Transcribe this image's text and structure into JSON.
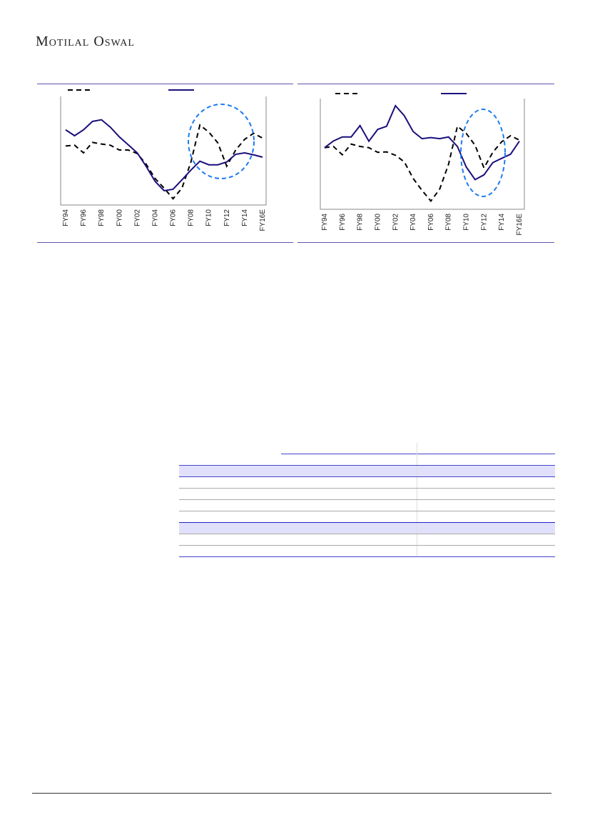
{
  "header": {
    "logo_text": "Motilal Oswal"
  },
  "colors": {
    "solid_series": "#1a0f7a",
    "dashed_series": "#000000",
    "highlight_ellipse": "#1e7bf0",
    "rule": "#5b55a8",
    "table_band": "#e0e0fa"
  },
  "chart_data": [
    {
      "type": "line",
      "title": "",
      "xlabel": "",
      "ylabel": "",
      "y_axis": "not printed; values read as relative index 0-100 of plot height",
      "grid": false,
      "legend": "top (markers only, no text)",
      "x": [
        "FY94",
        "FY95",
        "FY96",
        "FY97",
        "FY98",
        "FY99",
        "FY00",
        "FY01",
        "FY02",
        "FY03",
        "FY04",
        "FY05",
        "FY06",
        "FY07",
        "FY08",
        "FY09",
        "FY10",
        "FY11",
        "FY12",
        "FY13",
        "FY14",
        "FY15",
        "FY16E"
      ],
      "tick_labels": [
        "FY94",
        "FY96",
        "FY98",
        "FY00",
        "FY02",
        "FY04",
        "FY06",
        "FY08",
        "FY10",
        "FY12",
        "FY14",
        "FY16E"
      ],
      "series": [
        {
          "style": "dashed",
          "values": [
            54,
            54.7,
            47.7,
            57.3,
            55.8,
            54.7,
            50.3,
            50.3,
            47.1,
            37.3,
            24.2,
            15.5,
            5.7,
            15.5,
            39.4,
            73.2,
            66.7,
            56.9,
            35.5,
            50.3,
            60.1,
            65.6,
            61.2
          ]
        },
        {
          "style": "solid",
          "values": [
            68.8,
            63.4,
            68.8,
            76.5,
            78,
            71.2,
            62.3,
            55.1,
            47.7,
            35.3,
            21.6,
            13.1,
            14.4,
            23.1,
            32,
            40.1,
            36.8,
            36.8,
            39.4,
            46.4,
            47.7,
            45.9,
            43.8
          ]
        }
      ],
      "annotation": "dashed ellipse highlighting FY09-FY15"
    },
    {
      "type": "line",
      "title": "",
      "xlabel": "",
      "ylabel": "",
      "y_axis": "not printed; values read as relative index 0-100 of plot height",
      "grid": false,
      "legend": "top (markers only, no text)",
      "x": [
        "FY94",
        "FY95",
        "FY96",
        "FY97",
        "FY98",
        "FY99",
        "FY00",
        "FY01",
        "FY02",
        "FY03",
        "FY04",
        "FY05",
        "FY06",
        "FY07",
        "FY08",
        "FY09",
        "FY10",
        "FY11",
        "FY12",
        "FY13",
        "FY14",
        "FY15",
        "FY16E"
      ],
      "tick_labels": [
        "FY94",
        "FY96",
        "FY98",
        "FY00",
        "FY02",
        "FY04",
        "FY06",
        "FY08",
        "FY10",
        "FY12",
        "FY14",
        "FY16E"
      ],
      "series": [
        {
          "style": "dashed",
          "values": [
            55.3,
            56.4,
            48.9,
            58.5,
            56.4,
            55.3,
            51.1,
            51.5,
            48.5,
            42.6,
            27.7,
            17,
            7.4,
            18.1,
            40.4,
            74.5,
            68.1,
            57.4,
            37.2,
            51.1,
            60.6,
            66,
            62.1
          ]
        },
        {
          "style": "solid",
          "values": [
            55.3,
            61.3,
            64.9,
            64.9,
            75.1,
            61.1,
            71.7,
            74.5,
            93,
            84,
            69.8,
            63.4,
            64.3,
            63.4,
            64.9,
            56.4,
            37.9,
            26.6,
            30.9,
            41.9,
            45.7,
            49.4,
            61.1
          ]
        }
      ],
      "annotation": "dashed ellipse highlighting FY10-FY14"
    }
  ]
}
